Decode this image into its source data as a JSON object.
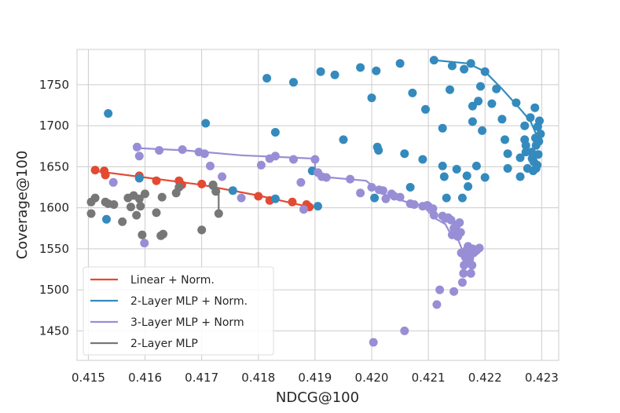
{
  "chart_data": {
    "type": "scatter",
    "title": "",
    "xlabel": "NDCG@100",
    "ylabel": "Coverage@100",
    "xlim": [
      0.4148,
      0.4233
    ],
    "ylim": [
      1414,
      1793
    ],
    "xticks": [
      "0.415",
      "0.416",
      "0.417",
      "0.418",
      "0.419",
      "0.420",
      "0.421",
      "0.422",
      "0.423"
    ],
    "yticks": [
      "1450",
      "1500",
      "1550",
      "1600",
      "1650",
      "1700",
      "1750"
    ],
    "grid": true,
    "legend_position": "lower-left",
    "series": [
      {
        "name": "Linear + Norm.",
        "color": "#E24A33",
        "line": [
          [
            0.4151,
            1645
          ],
          [
            0.416,
            1637
          ],
          [
            0.417,
            1628
          ],
          [
            0.418,
            1615
          ],
          [
            0.4189,
            1601
          ]
        ],
        "points": [
          [
            0.41512,
            1646
          ],
          [
            0.41528,
            1645
          ],
          [
            0.4153,
            1640
          ],
          [
            0.4159,
            1639
          ],
          [
            0.4162,
            1633
          ],
          [
            0.4166,
            1633
          ],
          [
            0.41665,
            1628
          ],
          [
            0.417,
            1629
          ],
          [
            0.418,
            1614
          ],
          [
            0.4182,
            1609
          ],
          [
            0.4186,
            1607
          ],
          [
            0.41885,
            1604
          ],
          [
            0.4189,
            1601
          ]
        ]
      },
      {
        "name": "2-Layer MLP + Norm.",
        "color": "#348ABD",
        "line": [
          [
            0.4211,
            1780
          ],
          [
            0.4217,
            1776
          ],
          [
            0.422,
            1766
          ],
          [
            0.4223,
            1745
          ],
          [
            0.4226,
            1722
          ],
          [
            0.4228,
            1706
          ],
          [
            0.4229,
            1690
          ]
        ],
        "points": [
          [
            0.41535,
            1715
          ],
          [
            0.41532,
            1586
          ],
          [
            0.4159,
            1636
          ],
          [
            0.41707,
            1703
          ],
          [
            0.4172,
            1627
          ],
          [
            0.41755,
            1621
          ],
          [
            0.41815,
            1758
          ],
          [
            0.4183,
            1692
          ],
          [
            0.4183,
            1611
          ],
          [
            0.41862,
            1753
          ],
          [
            0.41895,
            1645
          ],
          [
            0.41905,
            1602
          ],
          [
            0.4191,
            1766
          ],
          [
            0.41935,
            1762
          ],
          [
            0.4195,
            1683
          ],
          [
            0.4198,
            1771
          ],
          [
            0.42,
            1734
          ],
          [
            0.42008,
            1767
          ],
          [
            0.42005,
            1612
          ],
          [
            0.4201,
            1674
          ],
          [
            0.42012,
            1670
          ],
          [
            0.4205,
            1776
          ],
          [
            0.42058,
            1666
          ],
          [
            0.42068,
            1625
          ],
          [
            0.42072,
            1740
          ],
          [
            0.4209,
            1659
          ],
          [
            0.42095,
            1720
          ],
          [
            0.4211,
            1780
          ],
          [
            0.42125,
            1697
          ],
          [
            0.42125,
            1651
          ],
          [
            0.42128,
            1638
          ],
          [
            0.42132,
            1612
          ],
          [
            0.42138,
            1744
          ],
          [
            0.42142,
            1773
          ],
          [
            0.4215,
            1647
          ],
          [
            0.4216,
            1612
          ],
          [
            0.42163,
            1769
          ],
          [
            0.42168,
            1639
          ],
          [
            0.4217,
            1626
          ],
          [
            0.42175,
            1776
          ],
          [
            0.42178,
            1724
          ],
          [
            0.42178,
            1705
          ],
          [
            0.42185,
            1651
          ],
          [
            0.42188,
            1730
          ],
          [
            0.42192,
            1748
          ],
          [
            0.42195,
            1694
          ],
          [
            0.422,
            1766
          ],
          [
            0.422,
            1637
          ],
          [
            0.42212,
            1727
          ],
          [
            0.4222,
            1745
          ],
          [
            0.4223,
            1708
          ],
          [
            0.42235,
            1683
          ],
          [
            0.4224,
            1666
          ],
          [
            0.4224,
            1648
          ],
          [
            0.42255,
            1728
          ],
          [
            0.42262,
            1661
          ],
          [
            0.42262,
            1638
          ],
          [
            0.4227,
            1700
          ],
          [
            0.4227,
            1683
          ],
          [
            0.42272,
            1676
          ],
          [
            0.42272,
            1668
          ],
          [
            0.42275,
            1648
          ],
          [
            0.4228,
            1710
          ],
          [
            0.42282,
            1668
          ],
          [
            0.42283,
            1660
          ],
          [
            0.42285,
            1645
          ],
          [
            0.42286,
            1656
          ],
          [
            0.42288,
            1722
          ],
          [
            0.42289,
            1685
          ],
          [
            0.4229,
            1676
          ],
          [
            0.4229,
            1648
          ],
          [
            0.42292,
            1652
          ],
          [
            0.42293,
            1699
          ],
          [
            0.42294,
            1665
          ],
          [
            0.42295,
            1681
          ],
          [
            0.42296,
            1706
          ],
          [
            0.42298,
            1690
          ]
        ]
      },
      {
        "name": "3-Layer MLP + Norm",
        "color": "#988ED5",
        "line": [
          [
            0.4158,
            1673
          ],
          [
            0.4167,
            1670
          ],
          [
            0.4177,
            1664
          ],
          [
            0.419,
            1660
          ],
          [
            0.419,
            1643
          ],
          [
            0.4191,
            1638
          ],
          [
            0.4199,
            1633
          ],
          [
            0.4202,
            1617
          ],
          [
            0.4207,
            1605
          ],
          [
            0.4209,
            1603
          ],
          [
            0.4211,
            1588
          ],
          [
            0.4213,
            1580
          ],
          [
            0.4214,
            1567
          ],
          [
            0.4215,
            1566
          ],
          [
            0.4216,
            1548
          ],
          [
            0.4217,
            1540
          ]
        ],
        "points": [
          [
            0.41544,
            1631
          ],
          [
            0.41586,
            1674
          ],
          [
            0.4159,
            1663
          ],
          [
            0.41599,
            1557
          ],
          [
            0.41625,
            1670
          ],
          [
            0.41666,
            1671
          ],
          [
            0.41695,
            1668
          ],
          [
            0.41705,
            1666
          ],
          [
            0.41715,
            1651
          ],
          [
            0.41736,
            1638
          ],
          [
            0.4177,
            1612
          ],
          [
            0.41805,
            1652
          ],
          [
            0.4182,
            1660
          ],
          [
            0.4183,
            1663
          ],
          [
            0.41862,
            1659
          ],
          [
            0.41875,
            1631
          ],
          [
            0.4188,
            1598
          ],
          [
            0.419,
            1659
          ],
          [
            0.41905,
            1643
          ],
          [
            0.41912,
            1638
          ],
          [
            0.4192,
            1637
          ],
          [
            0.41962,
            1635
          ],
          [
            0.4198,
            1618
          ],
          [
            0.42,
            1625
          ],
          [
            0.42003,
            1436
          ],
          [
            0.42013,
            1622
          ],
          [
            0.4202,
            1621
          ],
          [
            0.42025,
            1611
          ],
          [
            0.42035,
            1617
          ],
          [
            0.4204,
            1614
          ],
          [
            0.4205,
            1613
          ],
          [
            0.42058,
            1450
          ],
          [
            0.42068,
            1605
          ],
          [
            0.42075,
            1604
          ],
          [
            0.4209,
            1602
          ],
          [
            0.42098,
            1603
          ],
          [
            0.421,
            1602
          ],
          [
            0.42108,
            1599
          ],
          [
            0.4211,
            1591
          ],
          [
            0.42115,
            1482
          ],
          [
            0.4212,
            1500
          ],
          [
            0.42125,
            1590
          ],
          [
            0.4213,
            1587
          ],
          [
            0.42135,
            1588
          ],
          [
            0.4214,
            1585
          ],
          [
            0.42142,
            1567
          ],
          [
            0.42145,
            1575
          ],
          [
            0.42148,
            1568
          ],
          [
            0.4215,
            1579
          ],
          [
            0.42152,
            1565
          ],
          [
            0.42155,
            1582
          ],
          [
            0.42157,
            1570
          ],
          [
            0.42158,
            1545
          ],
          [
            0.4216,
            1509
          ],
          [
            0.42162,
            1520
          ],
          [
            0.42163,
            1530
          ],
          [
            0.42165,
            1540
          ],
          [
            0.42167,
            1548
          ],
          [
            0.42168,
            1535
          ],
          [
            0.4217,
            1553
          ],
          [
            0.42172,
            1545
          ],
          [
            0.42173,
            1538
          ],
          [
            0.42175,
            1520
          ],
          [
            0.42177,
            1530
          ],
          [
            0.42178,
            1550
          ],
          [
            0.4218,
            1545
          ],
          [
            0.42185,
            1548
          ],
          [
            0.4219,
            1551
          ],
          [
            0.42145,
            1498
          ]
        ]
      },
      {
        "name": "2-Layer MLP",
        "color": "#777777",
        "line": [
          [
            0.4172,
            1630
          ],
          [
            0.4173,
            1622
          ],
          [
            0.4173,
            1613
          ],
          [
            0.4173,
            1593
          ]
        ],
        "points": [
          [
            0.41505,
            1607
          ],
          [
            0.41505,
            1593
          ],
          [
            0.41512,
            1612
          ],
          [
            0.4153,
            1607
          ],
          [
            0.41535,
            1605
          ],
          [
            0.41545,
            1604
          ],
          [
            0.4156,
            1583
          ],
          [
            0.4157,
            1612
          ],
          [
            0.41575,
            1601
          ],
          [
            0.4158,
            1615
          ],
          [
            0.41585,
            1591
          ],
          [
            0.4159,
            1611
          ],
          [
            0.41592,
            1602
          ],
          [
            0.41595,
            1567
          ],
          [
            0.416,
            1617
          ],
          [
            0.4162,
            1594
          ],
          [
            0.41628,
            1566
          ],
          [
            0.4163,
            1613
          ],
          [
            0.41632,
            1568
          ],
          [
            0.41655,
            1618
          ],
          [
            0.4166,
            1625
          ],
          [
            0.417,
            1573
          ],
          [
            0.4172,
            1628
          ],
          [
            0.41725,
            1620
          ],
          [
            0.4173,
            1593
          ]
        ]
      }
    ]
  }
}
